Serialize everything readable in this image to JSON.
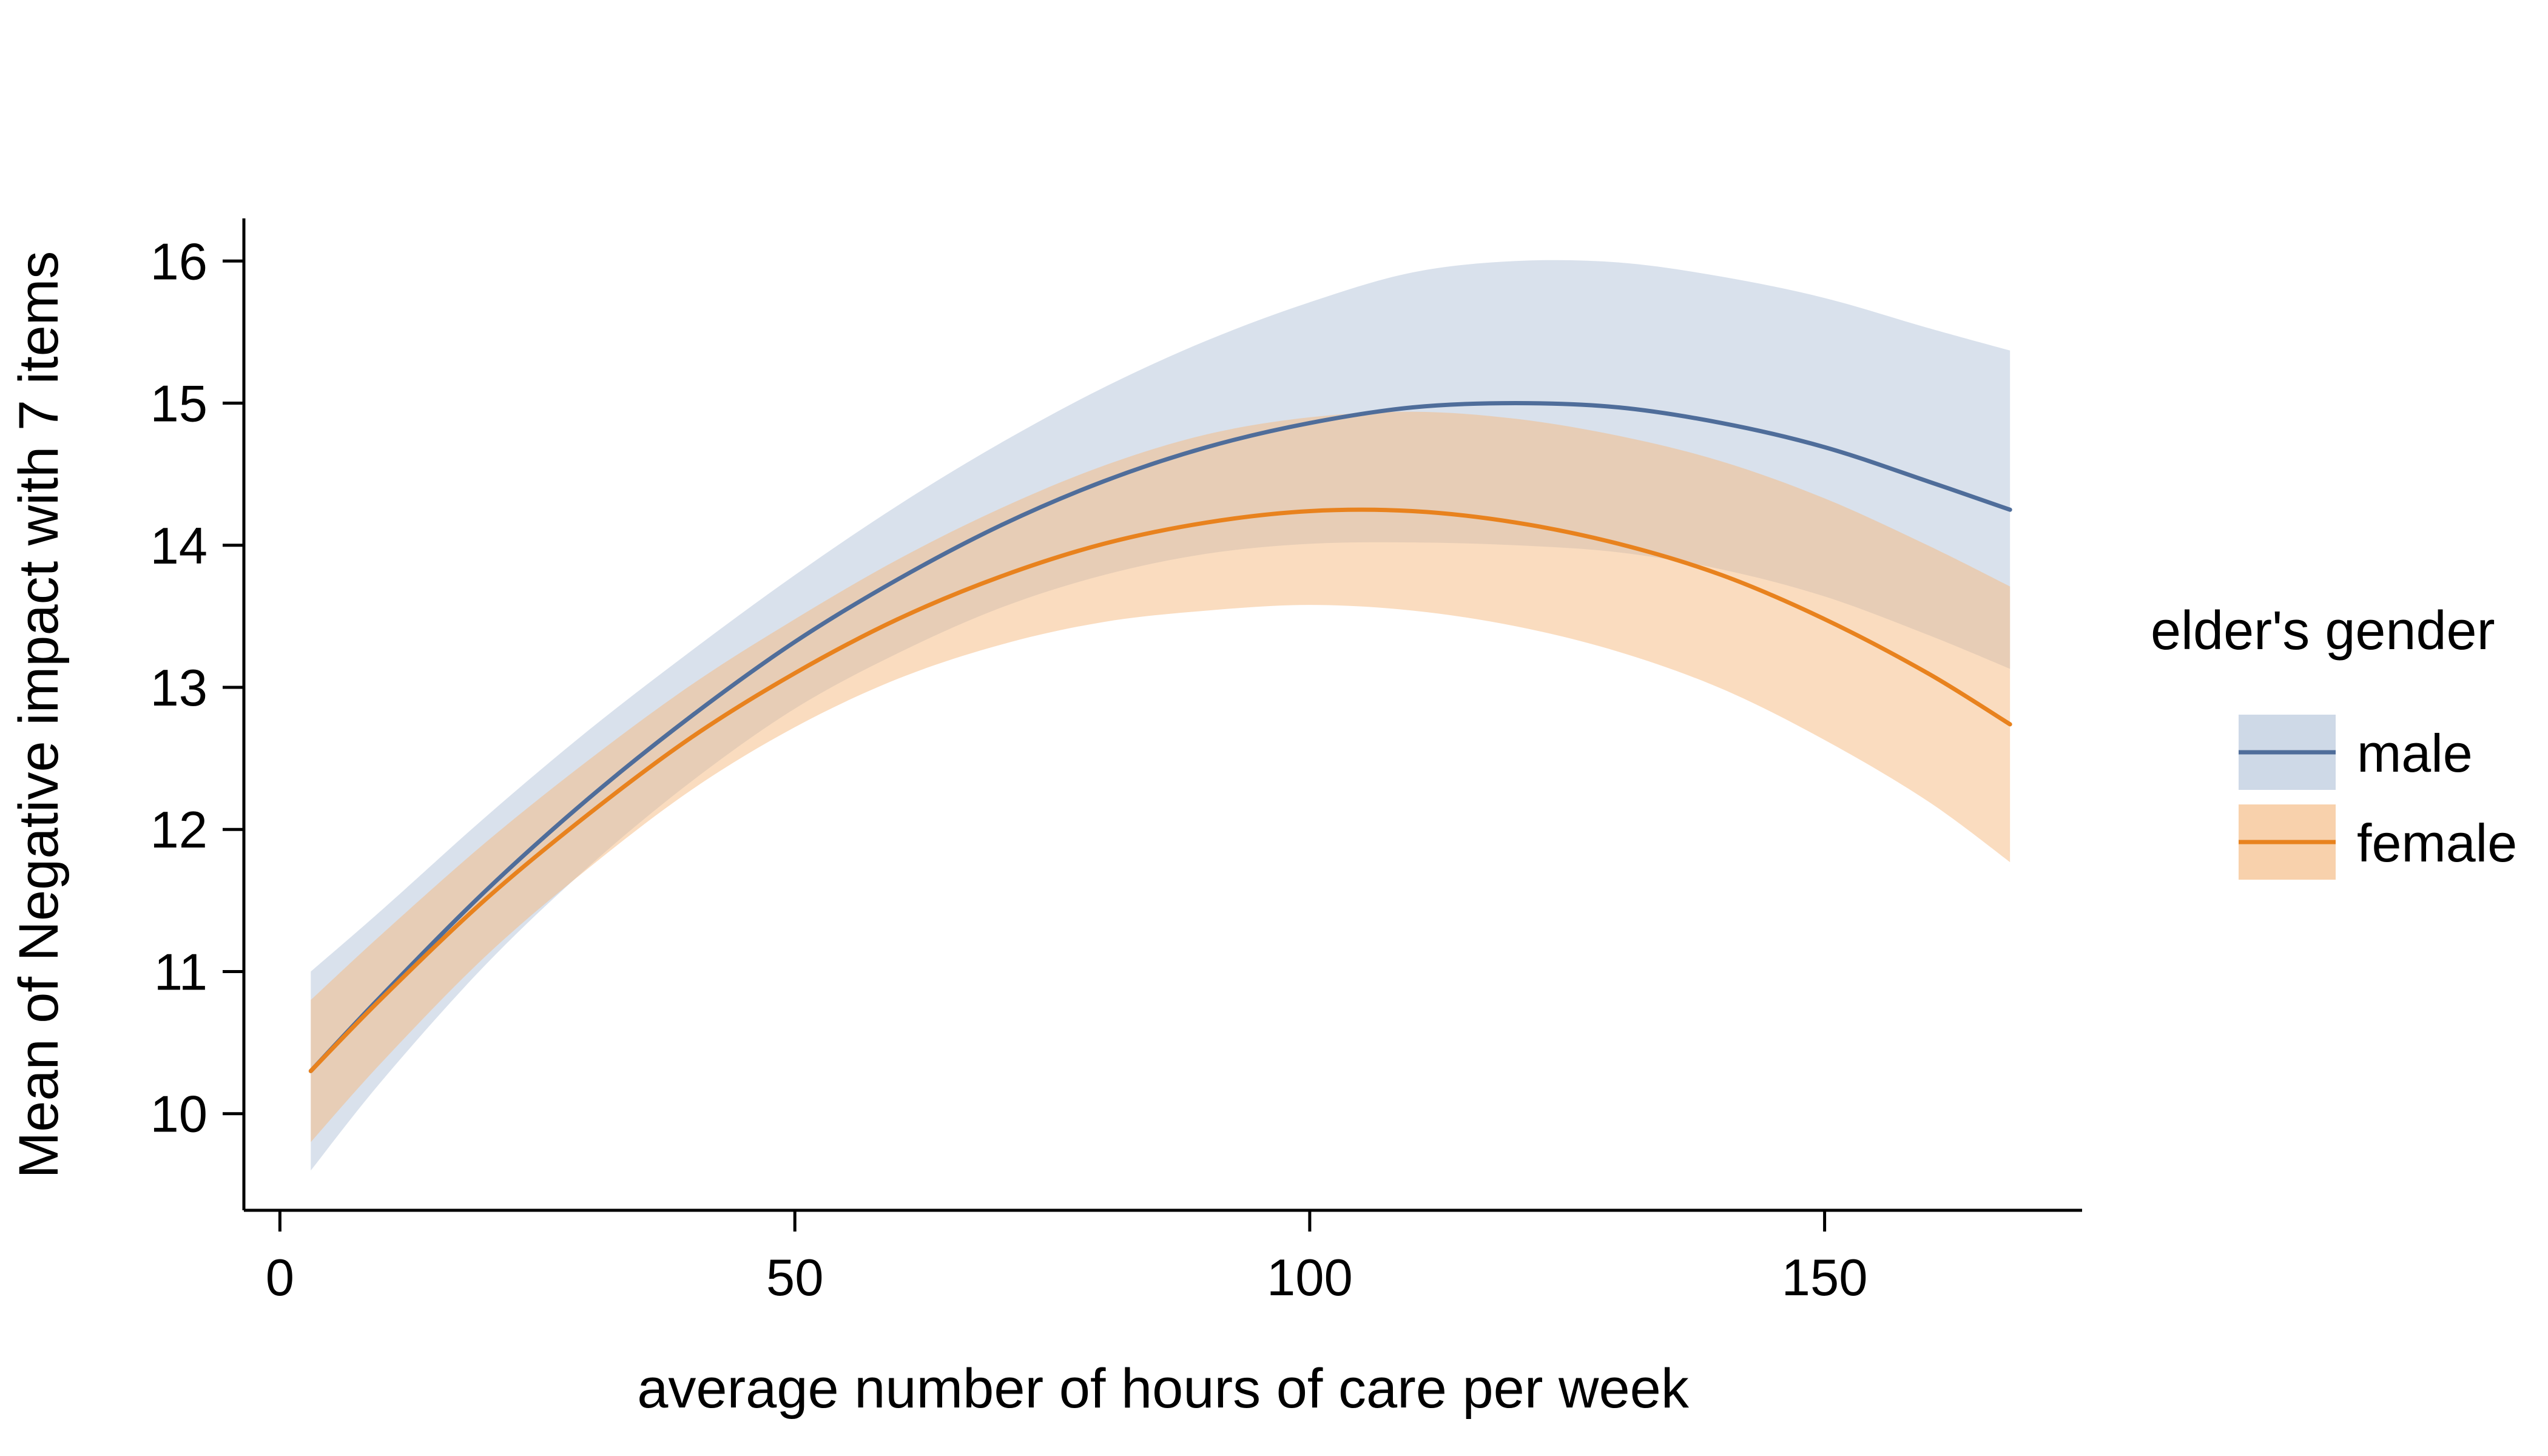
{
  "chart_data": {
    "type": "line",
    "title": "",
    "xlabel": "average number of hours of care per week",
    "ylabel": "Mean of Negative impact with 7 items",
    "legend_title": "elder's gender",
    "legend_position": "right",
    "grid": false,
    "xlim": [
      -3.5,
      175
    ],
    "ylim": [
      9.32,
      16.3
    ],
    "xticks": [
      0,
      50,
      100,
      150
    ],
    "yticks": [
      10,
      11,
      12,
      13,
      14,
      15,
      16
    ],
    "x": [
      3,
      10,
      20,
      30,
      40,
      50,
      60,
      70,
      80,
      90,
      100,
      110,
      120,
      130,
      140,
      150,
      160,
      168
    ],
    "series": [
      {
        "name": "male",
        "color": "#4f6d9a",
        "band_color": "#b9c9dd",
        "band_opacity": 0.55,
        "y": [
          10.3,
          10.84,
          11.57,
          12.22,
          12.8,
          13.32,
          13.76,
          14.14,
          14.45,
          14.69,
          14.86,
          14.97,
          15.0,
          14.97,
          14.86,
          14.69,
          14.45,
          14.25
        ],
        "lower": [
          9.6,
          10.24,
          11.05,
          11.74,
          12.34,
          12.85,
          13.24,
          13.56,
          13.79,
          13.94,
          14.01,
          14.02,
          14.0,
          13.95,
          13.83,
          13.64,
          13.37,
          13.13
        ],
        "upper": [
          11.0,
          11.44,
          12.09,
          12.7,
          13.26,
          13.79,
          14.28,
          14.72,
          15.11,
          15.44,
          15.71,
          15.92,
          16.0,
          15.99,
          15.89,
          15.74,
          15.53,
          15.37
        ]
      },
      {
        "name": "female",
        "color": "#e8821e",
        "band_color": "#f5b97f",
        "band_opacity": 0.5,
        "y": [
          10.3,
          10.82,
          11.51,
          12.11,
          12.65,
          13.1,
          13.48,
          13.78,
          14.01,
          14.16,
          14.24,
          14.24,
          14.16,
          14.01,
          13.79,
          13.48,
          13.1,
          12.74
        ],
        "lower": [
          9.8,
          10.37,
          11.11,
          11.73,
          12.28,
          12.72,
          13.06,
          13.3,
          13.46,
          13.54,
          13.58,
          13.54,
          13.43,
          13.25,
          12.99,
          12.63,
          12.2,
          11.77
        ],
        "upper": [
          10.8,
          11.27,
          11.91,
          12.49,
          13.02,
          13.48,
          13.9,
          14.26,
          14.56,
          14.78,
          14.9,
          14.94,
          14.89,
          14.77,
          14.59,
          14.33,
          14.0,
          13.71
        ]
      }
    ]
  }
}
